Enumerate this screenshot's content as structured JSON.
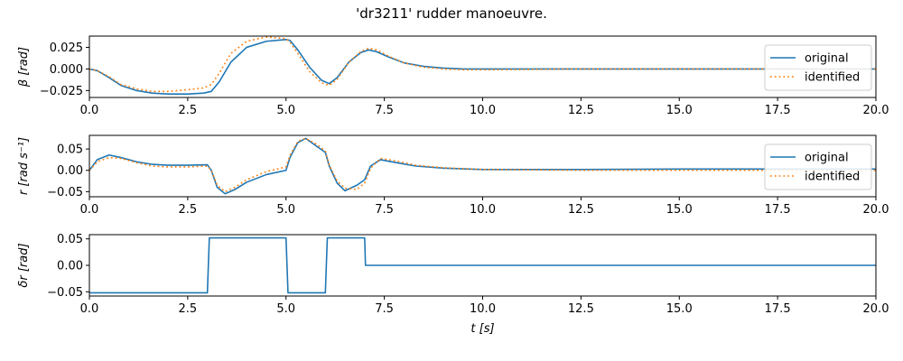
{
  "figure": {
    "title": "'dr3211' rudder manoeuvre."
  },
  "chart_data": [
    {
      "type": "line",
      "ylabel": "β [rad]",
      "xlim": [
        0,
        20
      ],
      "ylim": [
        -0.033,
        0.038
      ],
      "xticks": [
        "0.0",
        "2.5",
        "5.0",
        "7.5",
        "10.0",
        "12.5",
        "15.0",
        "17.5",
        "20.0"
      ],
      "xtick_values": [
        0,
        2.5,
        5,
        7.5,
        10,
        12.5,
        15,
        17.5,
        20
      ],
      "yticks": [
        "0.025",
        "0.000",
        "−0.025"
      ],
      "ytick_values": [
        0.025,
        0,
        -0.025
      ],
      "legend": "right",
      "series": [
        {
          "name": "original",
          "color": "#1f77b4",
          "style": "solid",
          "x": [
            0,
            0.2,
            0.5,
            0.8,
            1.2,
            1.6,
            2.0,
            2.5,
            2.9,
            3.1,
            3.3,
            3.6,
            4.0,
            4.5,
            5.0,
            5.1,
            5.3,
            5.6,
            5.9,
            6.1,
            6.3,
            6.6,
            6.9,
            7.1,
            7.3,
            7.6,
            8.0,
            8.5,
            9.0,
            9.5,
            10.0,
            12.5,
            15.0,
            17.5,
            20.0
          ],
          "y": [
            0.0,
            -0.002,
            -0.01,
            -0.019,
            -0.025,
            -0.028,
            -0.029,
            -0.029,
            -0.028,
            -0.026,
            -0.015,
            0.008,
            0.025,
            0.032,
            0.034,
            0.033,
            0.022,
            0.002,
            -0.013,
            -0.017,
            -0.01,
            0.008,
            0.019,
            0.022,
            0.02,
            0.014,
            0.007,
            0.003,
            0.001,
            0.0,
            0.0,
            0.0,
            0.0,
            0.0,
            0.0
          ]
        },
        {
          "name": "identified",
          "color": "#ff7f0e",
          "style": "dotted",
          "x": [
            0,
            0.2,
            0.5,
            0.8,
            1.2,
            1.6,
            2.0,
            2.5,
            2.9,
            3.1,
            3.3,
            3.6,
            4.0,
            4.5,
            5.0,
            5.1,
            5.3,
            5.6,
            5.9,
            6.1,
            6.3,
            6.6,
            6.9,
            7.1,
            7.3,
            7.6,
            8.0,
            8.5,
            9.0,
            9.5,
            10.0,
            12.5,
            15.0,
            17.5,
            20.0
          ],
          "y": [
            0.0,
            -0.002,
            -0.009,
            -0.018,
            -0.023,
            -0.026,
            -0.026,
            -0.024,
            -0.022,
            -0.018,
            -0.005,
            0.018,
            0.032,
            0.037,
            0.035,
            0.031,
            0.018,
            -0.003,
            -0.016,
            -0.019,
            -0.012,
            0.008,
            0.02,
            0.024,
            0.022,
            0.015,
            0.007,
            0.002,
            0.0,
            -0.001,
            -0.001,
            0.0,
            0.0,
            0.0,
            0.0
          ]
        }
      ]
    },
    {
      "type": "line",
      "ylabel": "r [rad s⁻¹]",
      "xlim": [
        0,
        20
      ],
      "ylim": [
        -0.062,
        0.082
      ],
      "xticks": [
        "0.0",
        "2.5",
        "5.0",
        "7.5",
        "10.0",
        "12.5",
        "15.0",
        "17.5",
        "20.0"
      ],
      "xtick_values": [
        0,
        2.5,
        5,
        7.5,
        10,
        12.5,
        15,
        17.5,
        20
      ],
      "yticks": [
        "0.05",
        "0.00",
        "−0.05"
      ],
      "ytick_values": [
        0.05,
        0,
        -0.05
      ],
      "legend": "right",
      "series": [
        {
          "name": "original",
          "color": "#1f77b4",
          "style": "solid",
          "x": [
            0,
            0.2,
            0.5,
            0.8,
            1.2,
            1.6,
            2.0,
            2.5,
            3.0,
            3.1,
            3.25,
            3.45,
            3.7,
            4.0,
            4.5,
            5.0,
            5.1,
            5.3,
            5.5,
            5.8,
            6.0,
            6.1,
            6.3,
            6.5,
            6.8,
            7.0,
            7.15,
            7.4,
            7.8,
            8.3,
            9.0,
            10.0,
            12.5,
            15.0,
            17.5,
            20.0
          ],
          "y": [
            0.0,
            0.025,
            0.036,
            0.03,
            0.02,
            0.014,
            0.012,
            0.012,
            0.013,
            0.0,
            -0.04,
            -0.055,
            -0.045,
            -0.028,
            -0.01,
            0.0,
            0.03,
            0.065,
            0.075,
            0.055,
            0.042,
            0.01,
            -0.03,
            -0.048,
            -0.035,
            -0.022,
            0.01,
            0.025,
            0.018,
            0.01,
            0.005,
            0.002,
            0.002,
            0.003,
            0.003,
            0.003
          ]
        },
        {
          "name": "identified",
          "color": "#ff7f0e",
          "style": "dotted",
          "x": [
            0,
            0.2,
            0.5,
            0.8,
            1.2,
            1.6,
            2.0,
            2.5,
            3.0,
            3.1,
            3.25,
            3.45,
            3.7,
            4.0,
            4.5,
            5.0,
            5.1,
            5.3,
            5.5,
            5.8,
            6.0,
            6.1,
            6.3,
            6.5,
            6.8,
            7.0,
            7.15,
            7.4,
            7.8,
            8.3,
            9.0,
            10.0,
            12.5,
            15.0,
            17.5,
            20.0
          ],
          "y": [
            0.0,
            0.02,
            0.03,
            0.028,
            0.018,
            0.01,
            0.008,
            0.008,
            0.01,
            0.0,
            -0.035,
            -0.05,
            -0.04,
            -0.022,
            -0.003,
            0.008,
            0.035,
            0.068,
            0.075,
            0.06,
            0.045,
            0.012,
            -0.025,
            -0.042,
            -0.045,
            -0.03,
            0.005,
            0.028,
            0.022,
            0.012,
            0.006,
            0.002,
            0.0,
            0.0,
            0.0,
            0.0
          ]
        }
      ]
    },
    {
      "type": "line",
      "ylabel": "δr [rad]",
      "xlabel": "t [s]",
      "xlim": [
        0,
        20
      ],
      "ylim": [
        -0.058,
        0.058
      ],
      "xticks": [
        "0.0",
        "2.5",
        "5.0",
        "7.5",
        "10.0",
        "12.5",
        "15.0",
        "17.5",
        "20.0"
      ],
      "xtick_values": [
        0,
        2.5,
        5,
        7.5,
        10,
        12.5,
        15,
        17.5,
        20
      ],
      "yticks": [
        "0.05",
        "0.00",
        "−0.05"
      ],
      "ytick_values": [
        0.05,
        0,
        -0.05
      ],
      "series": [
        {
          "color": "#1f77b4",
          "style": "solid",
          "x": [
            0,
            3.0,
            3.05,
            5.0,
            5.05,
            6.0,
            6.05,
            7.0,
            7.02,
            20.0
          ],
          "y": [
            -0.052,
            -0.052,
            0.052,
            0.052,
            -0.052,
            -0.052,
            0.052,
            0.052,
            0.0,
            0.0
          ]
        }
      ]
    }
  ]
}
